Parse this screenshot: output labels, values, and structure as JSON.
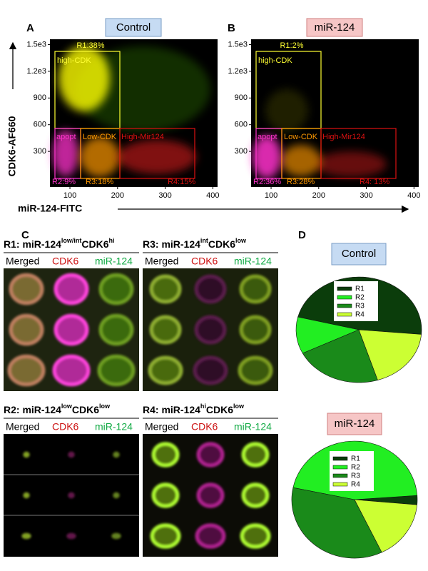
{
  "figure": {
    "panels": [
      {
        "letter": "A",
        "title": "Control",
        "gates": {
          "r1": "R1:38%",
          "high_cdk": "high-CDK",
          "apopt": "apopt",
          "low_cdk": "Low-CDK",
          "high_mir": "High-Mir124",
          "r2": "R2:9%",
          "r3": "R3:18%",
          "r4": "R4:15%"
        },
        "xlim": [
          58,
          410
        ],
        "ylim": [
          -100,
          1560
        ],
        "xticks": [
          100,
          200,
          300,
          400
        ],
        "yticks": [
          300,
          600,
          900,
          {
            "value": 1200,
            "label": "1.2e3"
          },
          {
            "value": 1500,
            "label": "1.5e3"
          }
        ]
      },
      {
        "letter": "B",
        "title": "miR-124",
        "gates": {
          "r1": "R1:2%",
          "high_cdk": "high-CDK",
          "apopt": "apopt",
          "low_cdk": "Low-CDK",
          "high_mir": "High-Mir124",
          "r2": "R2:36%",
          "r3": "R3:28%",
          "r4": "R4: 13%"
        },
        "xlim": [
          58,
          410
        ],
        "ylim": [
          -100,
          1560
        ],
        "xticks": [
          100,
          200,
          300,
          400
        ],
        "yticks": [
          300,
          600,
          900,
          {
            "value": 1200,
            "label": "1.2e3"
          },
          {
            "value": 1500,
            "label": "1.5e3"
          }
        ]
      }
    ],
    "y_label": "CDK6-AF660",
    "x_label": "miR-124-FITC",
    "C": {
      "letter": "C",
      "columns": [
        "Merged",
        "CDK6",
        "miR-124"
      ],
      "groups": [
        {
          "title": [
            "R1: miR-124",
            "low/int",
            "CDK6",
            "hi"
          ]
        },
        {
          "title": [
            "R3: miR-124",
            "int",
            "CDK6",
            "low"
          ]
        },
        {
          "title": [
            "R2: miR-124",
            "low",
            "CDK6",
            "low"
          ]
        },
        {
          "title": [
            "R4: miR-124",
            "hi",
            "CDK6",
            "low"
          ]
        }
      ]
    },
    "D": {
      "letter": "D"
    }
  },
  "chart_data": [
    {
      "type": "pie",
      "title": "Control",
      "categories": [
        "R1",
        "R2",
        "R3",
        "R4"
      ],
      "values": [
        38,
        9,
        18,
        15
      ],
      "colors": [
        "#0b3d0b",
        "#22ee22",
        "#1a8a1a",
        "#ccff33"
      ],
      "legend": "top"
    },
    {
      "type": "pie",
      "title": "miR-124",
      "categories": [
        "R1",
        "R2",
        "R3",
        "R4"
      ],
      "values": [
        2,
        36,
        28,
        13
      ],
      "colors": [
        "#0b3d0b",
        "#22ee22",
        "#1a8a1a",
        "#ccff33"
      ],
      "legend": "top"
    }
  ]
}
